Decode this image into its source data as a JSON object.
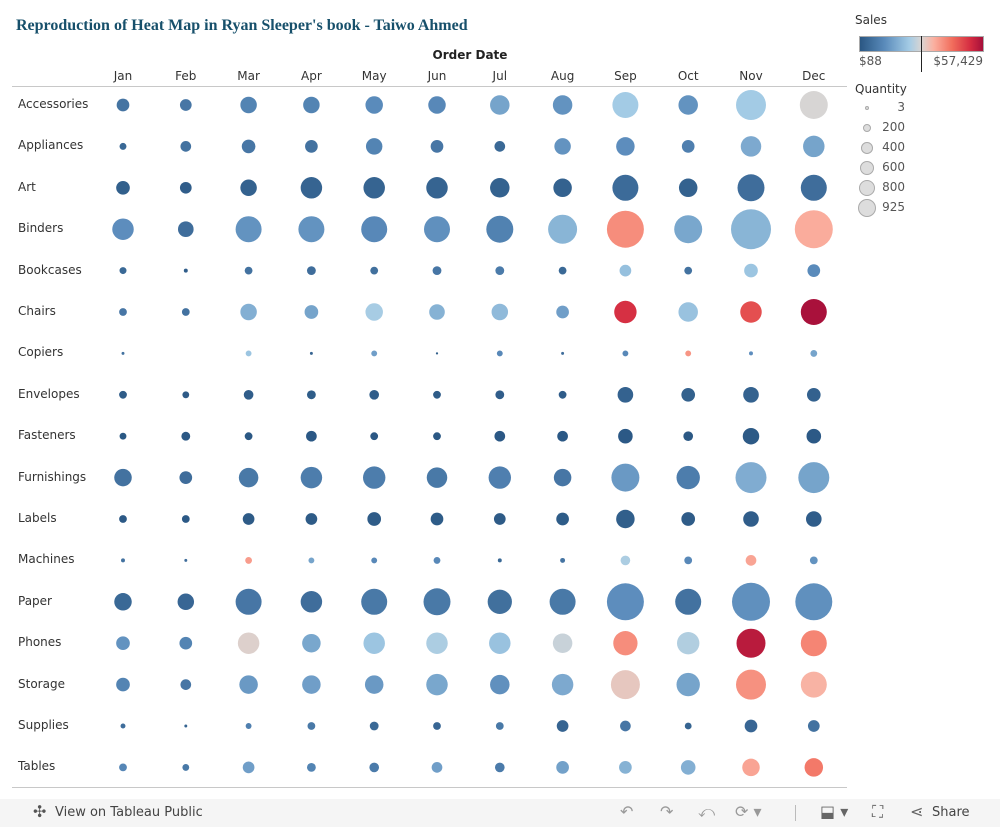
{
  "title": "Reproduction of Heat Map in Ryan Sleeper's book - Taiwo Ahmed",
  "legend": {
    "color_title": "Sales",
    "color_min": "$88",
    "color_max": "$57,429",
    "colors": {
      "low": "#2a5783",
      "mid_low": "#a3cbe5",
      "mid": "#d9d5d3",
      "mid_high": "#fbb0a0",
      "high": "#a50f3a"
    },
    "size_title": "Quantity",
    "size_items": [
      {
        "label": "3",
        "value": 3
      },
      {
        "label": "200",
        "value": 200
      },
      {
        "label": "400",
        "value": 400
      },
      {
        "label": "600",
        "value": 600
      },
      {
        "label": "800",
        "value": 800
      },
      {
        "label": "925",
        "value": 925
      }
    ]
  },
  "chart_data": {
    "type": "scatter",
    "subtype": "bubble heatmap",
    "xlabel": "Order Date",
    "x_categories": [
      "Jan",
      "Feb",
      "Mar",
      "Apr",
      "May",
      "Jun",
      "Jul",
      "Aug",
      "Sep",
      "Oct",
      "Nov",
      "Dec"
    ],
    "y_categories": [
      "Accessories",
      "Appliances",
      "Art",
      "Binders",
      "Bookcases",
      "Chairs",
      "Copiers",
      "Envelopes",
      "Fasteners",
      "Furnishings",
      "Labels",
      "Machines",
      "Paper",
      "Phones",
      "Storage",
      "Supplies",
      "Tables"
    ],
    "size_measure": "Quantity",
    "color_measure": "Sales",
    "color_range": [
      88,
      57429
    ],
    "size_range": [
      3,
      925
    ],
    "quantity": [
      [
        93,
        79,
        157,
        157,
        177,
        177,
        220,
        220,
        391,
        220,
        520,
        453
      ],
      [
        28,
        66,
        108,
        93,
        157,
        93,
        66,
        157,
        198,
        93,
        243,
        267
      ],
      [
        108,
        79,
        157,
        267,
        267,
        267,
        220,
        198,
        391,
        198,
        421,
        391
      ],
      [
        267,
        141,
        391,
        391,
        391,
        391,
        421,
        486,
        791,
        453,
        925,
        835
      ],
      [
        28,
        9,
        35,
        45,
        35,
        45,
        45,
        35,
        79,
        35,
        108,
        93
      ],
      [
        35,
        35,
        157,
        108,
        177,
        141,
        157,
        93,
        290,
        220,
        267,
        391
      ],
      [
        5,
        null,
        20,
        5,
        20,
        3,
        20,
        5,
        20,
        20,
        9,
        27
      ],
      [
        35,
        27,
        54,
        45,
        54,
        35,
        45,
        35,
        141,
        108,
        141,
        108
      ],
      [
        27,
        45,
        35,
        66,
        35,
        35,
        66,
        66,
        123,
        54,
        157,
        123
      ],
      [
        177,
        93,
        220,
        267,
        290,
        243,
        290,
        177,
        453,
        316,
        555,
        555
      ],
      [
        35,
        35,
        79,
        79,
        108,
        93,
        79,
        93,
        198,
        108,
        141,
        141
      ],
      [
        9,
        5,
        27,
        20,
        20,
        27,
        9,
        14,
        54,
        35,
        66,
        35
      ],
      [
        177,
        157,
        391,
        267,
        391,
        421,
        341,
        391,
        791,
        391,
        835,
        791
      ],
      [
        108,
        93,
        267,
        198,
        267,
        267,
        267,
        220,
        341,
        290,
        486,
        391
      ],
      [
        108,
        66,
        198,
        198,
        198,
        267,
        220,
        267,
        486,
        316,
        520,
        391
      ],
      [
        14,
        5,
        20,
        35,
        45,
        35,
        35,
        79,
        66,
        27,
        93,
        79
      ],
      [
        35,
        27,
        79,
        45,
        54,
        66,
        54,
        93,
        93,
        123,
        177,
        198
      ]
    ],
    "sales": [
      [
        6500,
        7000,
        10000,
        10000,
        11500,
        11000,
        16000,
        13000,
        23000,
        13000,
        23000,
        28500
      ],
      [
        4000,
        6000,
        7000,
        6000,
        10000,
        7000,
        4000,
        13000,
        12000,
        9000,
        17000,
        16000
      ],
      [
        2000,
        1500,
        2500,
        3000,
        3000,
        3000,
        2500,
        2500,
        4500,
        2500,
        5000,
        5000
      ],
      [
        12000,
        5000,
        13000,
        13000,
        11000,
        12500,
        9500,
        19000,
        39000,
        16500,
        19000,
        35000
      ],
      [
        4000,
        1500,
        6000,
        5000,
        5500,
        7000,
        8000,
        4000,
        21000,
        6000,
        22000,
        11500
      ],
      [
        7000,
        6000,
        18000,
        16000,
        23500,
        18500,
        20000,
        15000,
        51000,
        21500,
        47000,
        57000
      ],
      [
        6000,
        null,
        22000,
        3000,
        15000,
        2000,
        11000,
        5000,
        11000,
        38000,
        12000,
        16000
      ],
      [
        1200,
        1000,
        1500,
        1400,
        1500,
        1200,
        1500,
        1300,
        2500,
        2200,
        2500,
        2300
      ],
      [
        200,
        300,
        250,
        400,
        250,
        250,
        400,
        400,
        600,
        350,
        700,
        600
      ],
      [
        6000,
        5000,
        7500,
        8500,
        8500,
        7500,
        9000,
        7000,
        14000,
        8500,
        17500,
        16000
      ],
      [
        600,
        600,
        1000,
        1000,
        1200,
        1100,
        1000,
        1100,
        1800,
        1200,
        1500,
        1500
      ],
      [
        6000,
        5000,
        37000,
        16000,
        11000,
        11000,
        4000,
        6500,
        24000,
        11000,
        36000,
        13000
      ],
      [
        4000,
        3500,
        7000,
        5000,
        7500,
        7500,
        5500,
        7500,
        12000,
        6000,
        12500,
        12500
      ],
      [
        13000,
        10000,
        29500,
        16500,
        22000,
        24000,
        21500,
        27000,
        39000,
        24500,
        55000,
        40000
      ],
      [
        10000,
        7000,
        14000,
        15000,
        14000,
        16500,
        12500,
        17000,
        31000,
        16000,
        38500,
        34000
      ],
      [
        5000,
        3000,
        9000,
        7500,
        4000,
        3500,
        7500,
        3000,
        7000,
        3000,
        3500,
        6000
      ],
      [
        10500,
        7500,
        15000,
        10000,
        8000,
        15000,
        8000,
        15500,
        18500,
        18000,
        36000,
        41500
      ]
    ],
    "grid": false,
    "legend_placement": "right"
  },
  "footer": {
    "view_label": "View on Tableau Public",
    "share_label": "Share",
    "icons": [
      "tableau-logo",
      "undo",
      "redo",
      "revert",
      "refresh",
      "download",
      "fullscreen",
      "share"
    ]
  }
}
